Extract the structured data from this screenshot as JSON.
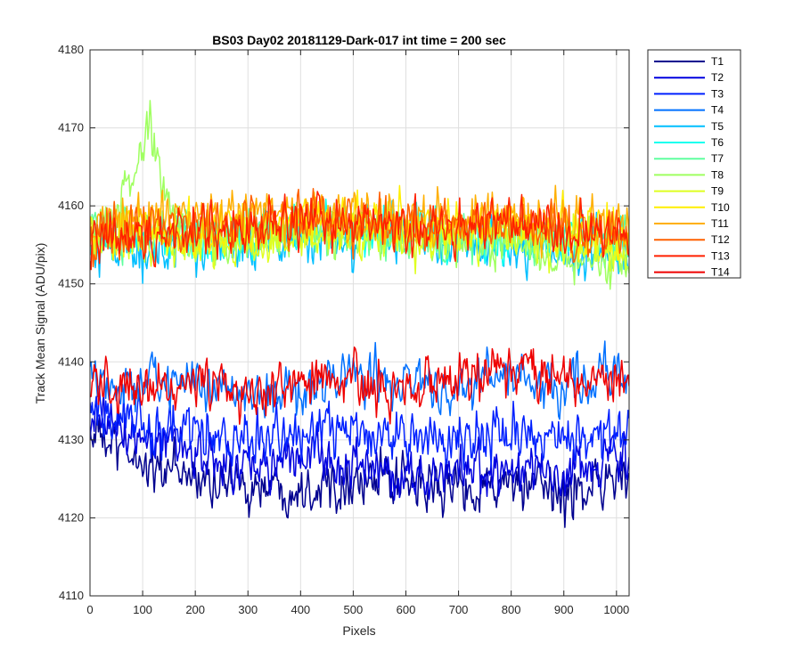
{
  "chart_data": {
    "type": "line",
    "title": "BS03 Day02 20181129-Dark-017 int time = 200 sec",
    "xlabel": "Pixels",
    "ylabel": "Track Mean Signal (ADU/pix)",
    "xlim": [
      0,
      1024
    ],
    "ylim": [
      4110,
      4180
    ],
    "xticks": [
      0,
      100,
      200,
      300,
      400,
      500,
      600,
      700,
      800,
      900,
      1000
    ],
    "yticks": [
      4110,
      4120,
      4130,
      4140,
      4150,
      4160,
      4170,
      4180
    ],
    "grid": true,
    "legend_position": "outside-top-right",
    "noise_amplitude": 2.2,
    "series": [
      {
        "name": "T1",
        "color": "#00008f",
        "x": [
          0,
          100,
          200,
          300,
          400,
          500,
          600,
          700,
          800,
          900,
          1024
        ],
        "y": [
          4131,
          4127,
          4125,
          4124,
          4124,
          4125,
          4124,
          4124,
          4124,
          4123,
          4126
        ]
      },
      {
        "name": "T2",
        "color": "#0000df",
        "x": [
          0,
          100,
          200,
          300,
          400,
          500,
          600,
          700,
          800,
          900,
          1024
        ],
        "y": [
          4133,
          4130,
          4128,
          4127,
          4128,
          4127,
          4125,
          4126,
          4126,
          4125,
          4128
        ]
      },
      {
        "name": "T3",
        "color": "#0020ff",
        "x": [
          0,
          100,
          200,
          300,
          400,
          500,
          600,
          700,
          800,
          900,
          1024
        ],
        "y": [
          4134,
          4132,
          4131,
          4130,
          4131,
          4131,
          4130,
          4130,
          4131,
          4130,
          4131
        ]
      },
      {
        "name": "T4",
        "color": "#0070ff",
        "x": [
          0,
          100,
          200,
          300,
          400,
          500,
          600,
          700,
          800,
          900,
          1024
        ],
        "y": [
          4138,
          4137,
          4137,
          4136,
          4137,
          4138,
          4138,
          4137,
          4138,
          4137,
          4139
        ]
      },
      {
        "name": "T5",
        "color": "#00bfff",
        "x": [
          0,
          100,
          200,
          300,
          400,
          500,
          600,
          700,
          800,
          900,
          1024
        ],
        "y": [
          4155,
          4154,
          4155,
          4155,
          4156,
          4156,
          4156,
          4155,
          4155,
          4154,
          4154
        ]
      },
      {
        "name": "T6",
        "color": "#10ffef",
        "x": [
          0,
          100,
          200,
          300,
          400,
          500,
          600,
          700,
          800,
          900,
          1024
        ],
        "y": [
          4155,
          4156,
          4156,
          4156,
          4157,
          4157,
          4157,
          4156,
          4156,
          4156,
          4155
        ]
      },
      {
        "name": "T7",
        "color": "#60ff9f",
        "x": [
          0,
          100,
          200,
          300,
          400,
          500,
          600,
          700,
          800,
          900,
          1024
        ],
        "y": [
          4156,
          4157,
          4156,
          4156,
          4157,
          4157,
          4156,
          4156,
          4156,
          4156,
          4155
        ]
      },
      {
        "name": "T8",
        "color": "#9fff60",
        "x": [
          0,
          50,
          80,
          100,
          115,
          130,
          160,
          200,
          300,
          400,
          500,
          600,
          700,
          800,
          900,
          1024
        ],
        "y": [
          4156,
          4158,
          4164,
          4168,
          4170,
          4166,
          4158,
          4156,
          4156,
          4157,
          4157,
          4156,
          4156,
          4156,
          4153,
          4152
        ]
      },
      {
        "name": "T9",
        "color": "#dfff20",
        "x": [
          0,
          100,
          200,
          300,
          400,
          500,
          600,
          700,
          800,
          900,
          1024
        ],
        "y": [
          4156,
          4156,
          4155,
          4155,
          4156,
          4157,
          4156,
          4156,
          4157,
          4155,
          4154
        ]
      },
      {
        "name": "T10",
        "color": "#ffef00",
        "x": [
          0,
          100,
          200,
          300,
          400,
          500,
          600,
          700,
          800,
          900,
          1024
        ],
        "y": [
          4156,
          4157,
          4157,
          4157,
          4158,
          4158,
          4158,
          4157,
          4158,
          4157,
          4156
        ]
      },
      {
        "name": "T11",
        "color": "#ffaf00",
        "x": [
          0,
          100,
          200,
          300,
          400,
          500,
          600,
          700,
          800,
          900,
          1024
        ],
        "y": [
          4157,
          4158,
          4158,
          4159,
          4159,
          4159,
          4158,
          4158,
          4159,
          4158,
          4157
        ]
      },
      {
        "name": "T12",
        "color": "#ff6000",
        "x": [
          0,
          100,
          200,
          300,
          400,
          500,
          600,
          700,
          800,
          900,
          1024
        ],
        "y": [
          4156,
          4157,
          4157,
          4158,
          4158,
          4158,
          4158,
          4158,
          4158,
          4157,
          4156
        ]
      },
      {
        "name": "T13",
        "color": "#ff2000",
        "x": [
          0,
          100,
          200,
          300,
          400,
          500,
          600,
          700,
          800,
          900,
          1024
        ],
        "y": [
          4155,
          4156,
          4157,
          4157,
          4158,
          4158,
          4157,
          4157,
          4158,
          4157,
          4156
        ]
      },
      {
        "name": "T14",
        "color": "#ef0000",
        "x": [
          0,
          100,
          200,
          300,
          400,
          500,
          600,
          700,
          800,
          900,
          1024
        ],
        "y": [
          4137,
          4137,
          4137,
          4136,
          4137,
          4137,
          4137,
          4138,
          4139,
          4138,
          4137
        ]
      }
    ]
  }
}
